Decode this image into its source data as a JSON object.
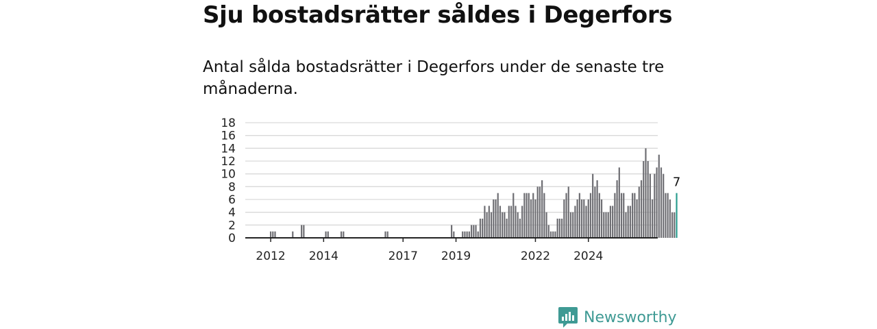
{
  "header": {
    "title": "Sju bostadsrätter såldes i Degerfors",
    "subtitle": "Antal sålda bostadsrätter i Degerfors under de senaste tre månaderna."
  },
  "brand": {
    "name": "Newsworthy",
    "color": "#3f9a94"
  },
  "colors": {
    "bar": "#6e6e73",
    "highlight": "#2a9d8f",
    "grid": "#d9d9d9",
    "axis": "#222222"
  },
  "chart_data": {
    "type": "bar",
    "x_start": "2011-10",
    "x_tick_labels": [
      "2012",
      "2014",
      "2017",
      "2019",
      "2022",
      "2024"
    ],
    "x_tick_months": [
      "2012-01",
      "2014-01",
      "2017-01",
      "2019-01",
      "2022-01",
      "2024-01"
    ],
    "ylim": [
      0,
      18
    ],
    "y_ticks": [
      0,
      2,
      4,
      6,
      8,
      10,
      12,
      14,
      16,
      18
    ],
    "grid": true,
    "values": [
      0,
      0,
      0,
      1,
      1,
      1,
      0,
      0,
      0,
      0,
      0,
      0,
      0,
      1,
      0,
      0,
      0,
      2,
      2,
      0,
      0,
      0,
      0,
      0,
      0,
      0,
      0,
      0,
      1,
      1,
      0,
      0,
      0,
      0,
      0,
      1,
      1,
      0,
      0,
      0,
      0,
      0,
      0,
      0,
      0,
      0,
      0,
      0,
      0,
      0,
      0,
      0,
      0,
      0,
      0,
      1,
      1,
      0,
      0,
      0,
      0,
      0,
      0,
      0,
      0,
      0,
      0,
      0,
      0,
      0,
      0,
      0,
      0,
      0,
      0,
      0,
      0,
      0,
      0,
      0,
      0,
      0,
      0,
      0,
      0,
      2,
      1,
      0,
      0,
      0,
      1,
      1,
      1,
      1,
      2,
      2,
      2,
      1,
      3,
      3,
      5,
      4,
      5,
      4,
      6,
      6,
      7,
      5,
      4,
      4,
      3,
      5,
      5,
      7,
      5,
      4,
      3,
      5,
      7,
      7,
      7,
      6,
      7,
      6,
      8,
      8,
      9,
      7,
      4,
      2,
      1,
      1,
      1,
      3,
      3,
      3,
      6,
      7,
      8,
      4,
      4,
      5,
      6,
      7,
      6,
      6,
      5,
      6,
      7,
      10,
      8,
      9,
      7,
      6,
      4,
      4,
      4,
      5,
      5,
      7,
      9,
      11,
      7,
      7,
      4,
      5,
      5,
      7,
      7,
      6,
      8,
      9,
      12,
      14,
      12,
      10,
      6,
      10,
      11,
      13,
      11,
      10,
      7,
      7,
      6,
      4,
      4,
      7
    ],
    "highlight_last": true,
    "annotation": "7"
  }
}
